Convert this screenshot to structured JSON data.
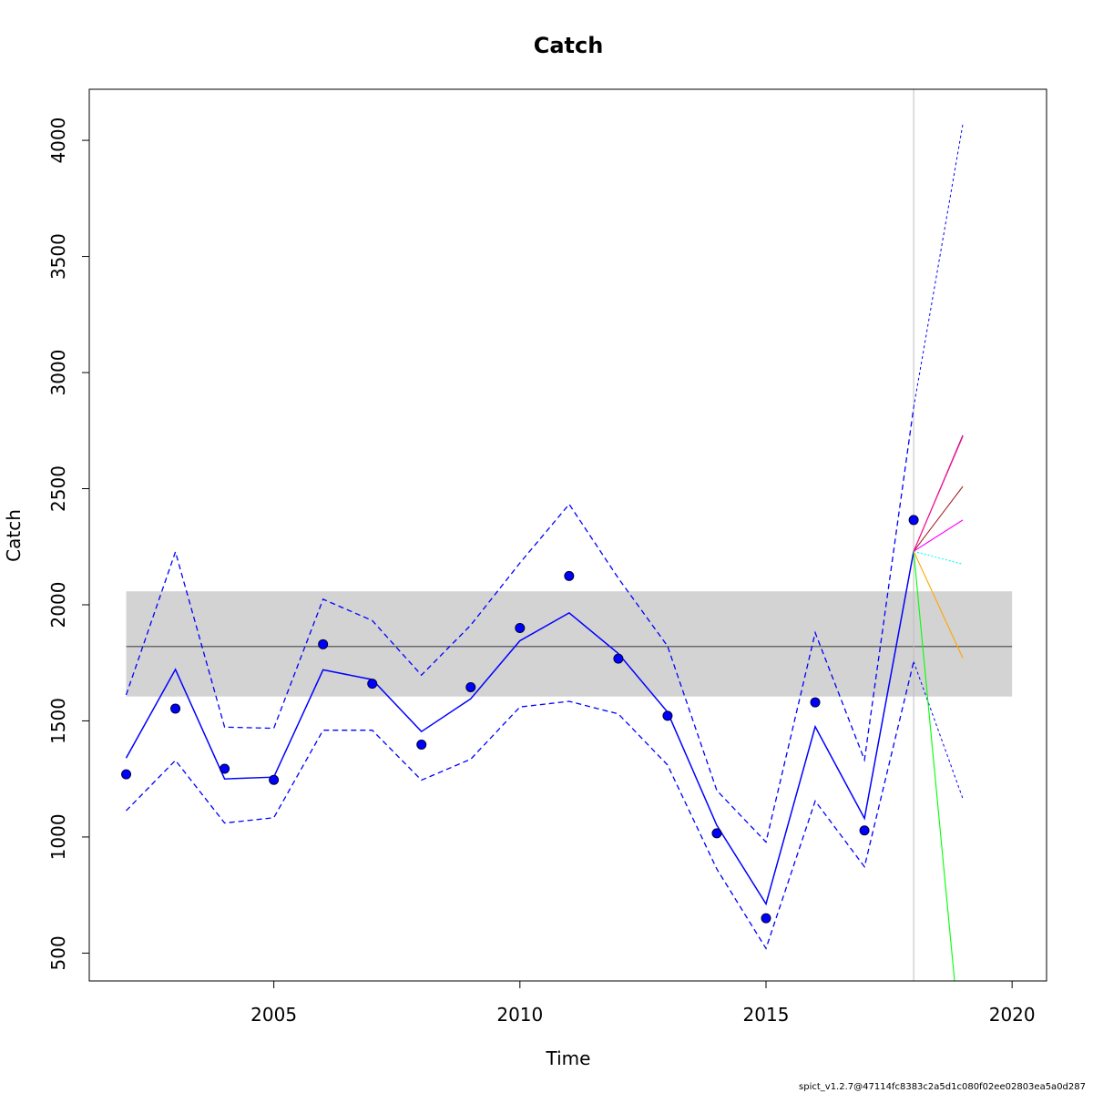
{
  "chart_data": {
    "type": "line",
    "title": "Catch",
    "xlabel": "Time",
    "ylabel": "Catch",
    "footer": "spict_v1.2.7@47114fc8383c2a5d1c080f02ee02803ea5a0d287",
    "xlim": [
      2001.25,
      2020.7
    ],
    "ylim": [
      380,
      4220
    ],
    "x_ticks": [
      2005,
      2010,
      2015,
      2020
    ],
    "y_ticks": [
      500,
      1000,
      1500,
      2000,
      2500,
      3000,
      3500,
      4000
    ],
    "grid": false,
    "msy_band": {
      "x": [
        2002,
        2020
      ],
      "lower": 1605,
      "upper": 2058,
      "mid": 1820,
      "color": "#d3d3d3",
      "line_color": "#000000"
    },
    "vline": {
      "x": 2018,
      "color": "#bebebe"
    },
    "observed": {
      "color": "#0000ff",
      "x": [
        2002,
        2003,
        2004,
        2005,
        2006,
        2007,
        2008,
        2009,
        2010,
        2011,
        2012,
        2013,
        2014,
        2015,
        2016,
        2017,
        2018
      ],
      "y": [
        1270,
        1553,
        1294,
        1246,
        1830,
        1660,
        1398,
        1645,
        1900,
        2124,
        1768,
        1522,
        1016,
        650,
        1580,
        1028,
        2365
      ]
    },
    "predicted": {
      "color": "#0000ff",
      "x": [
        2002,
        2003,
        2004,
        2005,
        2006,
        2007,
        2008,
        2009,
        2010,
        2011,
        2012,
        2013,
        2014,
        2015,
        2016,
        2017,
        2018
      ],
      "y": [
        1340,
        1722,
        1250,
        1258,
        1720,
        1678,
        1454,
        1595,
        1845,
        1965,
        1790,
        1538,
        1050,
        712,
        1475,
        1080,
        2230
      ],
      "upper": [
        1612,
        2228,
        1473,
        1468,
        2024,
        1932,
        1697,
        1912,
        2180,
        2433,
        2114,
        1822,
        1200,
        978,
        1880,
        1332,
        2850
      ],
      "lower": [
        1113,
        1330,
        1060,
        1083,
        1460,
        1460,
        1245,
        1335,
        1560,
        1584,
        1530,
        1310,
        862,
        520,
        1155,
        872,
        1755
      ]
    },
    "forecast_ci": {
      "color": "#0000ff",
      "x": [
        2018,
        2019
      ],
      "upper": [
        2850,
        4070
      ],
      "lower": [
        1755,
        1165
      ]
    },
    "scenarios": [
      {
        "color": "#00ff00",
        "x": [
          2018,
          2018.83
        ],
        "y": [
          2230,
          380
        ]
      },
      {
        "color": "#ffa500",
        "x": [
          2018,
          2019
        ],
        "y": [
          2230,
          1770
        ]
      },
      {
        "color": "#00ffff",
        "x": [
          2018,
          2019
        ],
        "y": [
          2230,
          2175
        ],
        "dashed": true
      },
      {
        "color": "#ff00ff",
        "x": [
          2018,
          2019
        ],
        "y": [
          2230,
          2365
        ]
      },
      {
        "color": "#a52a2a",
        "x": [
          2018,
          2019
        ],
        "y": [
          2230,
          2510
        ]
      },
      {
        "color": "#800080",
        "x": [
          2018,
          2019
        ],
        "y": [
          2230,
          2730
        ]
      },
      {
        "color": "#ff1493",
        "x": [
          2018,
          2019
        ],
        "y": [
          2230,
          2725
        ]
      }
    ]
  }
}
